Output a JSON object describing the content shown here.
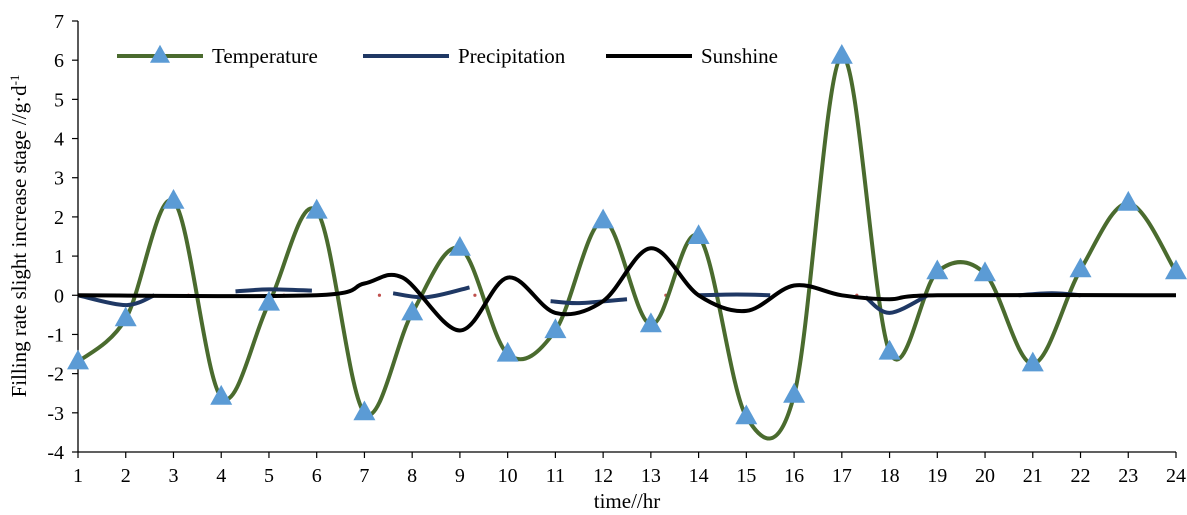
{
  "chart_data": {
    "type": "line",
    "title": "",
    "xlabel": "time//hr",
    "ylabel": "Filling rate slight increase stage //g·d",
    "ylabel_sup": "-1",
    "x": [
      1,
      2,
      3,
      4,
      5,
      6,
      7,
      8,
      9,
      10,
      11,
      12,
      13,
      14,
      15,
      16,
      17,
      18,
      19,
      20,
      21,
      22,
      23,
      24
    ],
    "ylim": [
      -4,
      7
    ],
    "yticks": [
      -4,
      -3,
      -2,
      -1,
      0,
      1,
      2,
      3,
      4,
      5,
      6,
      7
    ],
    "grid": false,
    "legend_position": "top-left",
    "series": [
      {
        "name": "Temperature",
        "color": "#4a6b2e",
        "marker": "triangle",
        "marker_color": "#5b9bd5",
        "values": [
          -1.7,
          -0.6,
          2.4,
          -2.6,
          -0.2,
          2.15,
          -3.0,
          -0.45,
          1.2,
          -1.5,
          -0.9,
          1.9,
          -0.75,
          1.5,
          -3.1,
          -2.55,
          6.1,
          -1.45,
          0.6,
          0.55,
          -1.75,
          0.65,
          2.35,
          0.6
        ]
      },
      {
        "name": "Precipitation",
        "color": "#1f3864",
        "segments": [
          {
            "x": [
              1,
              2,
              2.6
            ],
            "y": [
              0.0,
              -0.25,
              0.0
            ]
          },
          {
            "x": [
              4.3,
              5,
              5.9
            ],
            "y": [
              0.1,
              0.15,
              0.12
            ]
          },
          {
            "x": [
              7.6,
              8.3,
              9.2
            ],
            "y": [
              0.05,
              -0.05,
              0.2
            ]
          },
          {
            "x": [
              10.9,
              11.5,
              12.5
            ],
            "y": [
              -0.15,
              -0.2,
              -0.1
            ]
          },
          {
            "x": [
              14,
              14.8,
              15.5
            ],
            "y": [
              0.0,
              0.02,
              0.0
            ]
          },
          {
            "x": [
              17.5,
              18,
              18.8
            ],
            "y": [
              -0.05,
              -0.45,
              0.0
            ]
          },
          {
            "x": [
              20.7,
              21.4,
              22
            ],
            "y": [
              0.0,
              0.05,
              0.0
            ]
          }
        ]
      },
      {
        "name": "Sunshine",
        "color": "#000000",
        "x": [
          1,
          6,
          7,
          7.8,
          9,
          10,
          11,
          12,
          13,
          14,
          15,
          16,
          17,
          18,
          19,
          24
        ],
        "values": [
          0,
          0,
          0.3,
          0.45,
          -0.9,
          0.45,
          -0.45,
          -0.15,
          1.2,
          0.0,
          -0.4,
          0.25,
          0.0,
          -0.1,
          0,
          0
        ]
      }
    ]
  }
}
